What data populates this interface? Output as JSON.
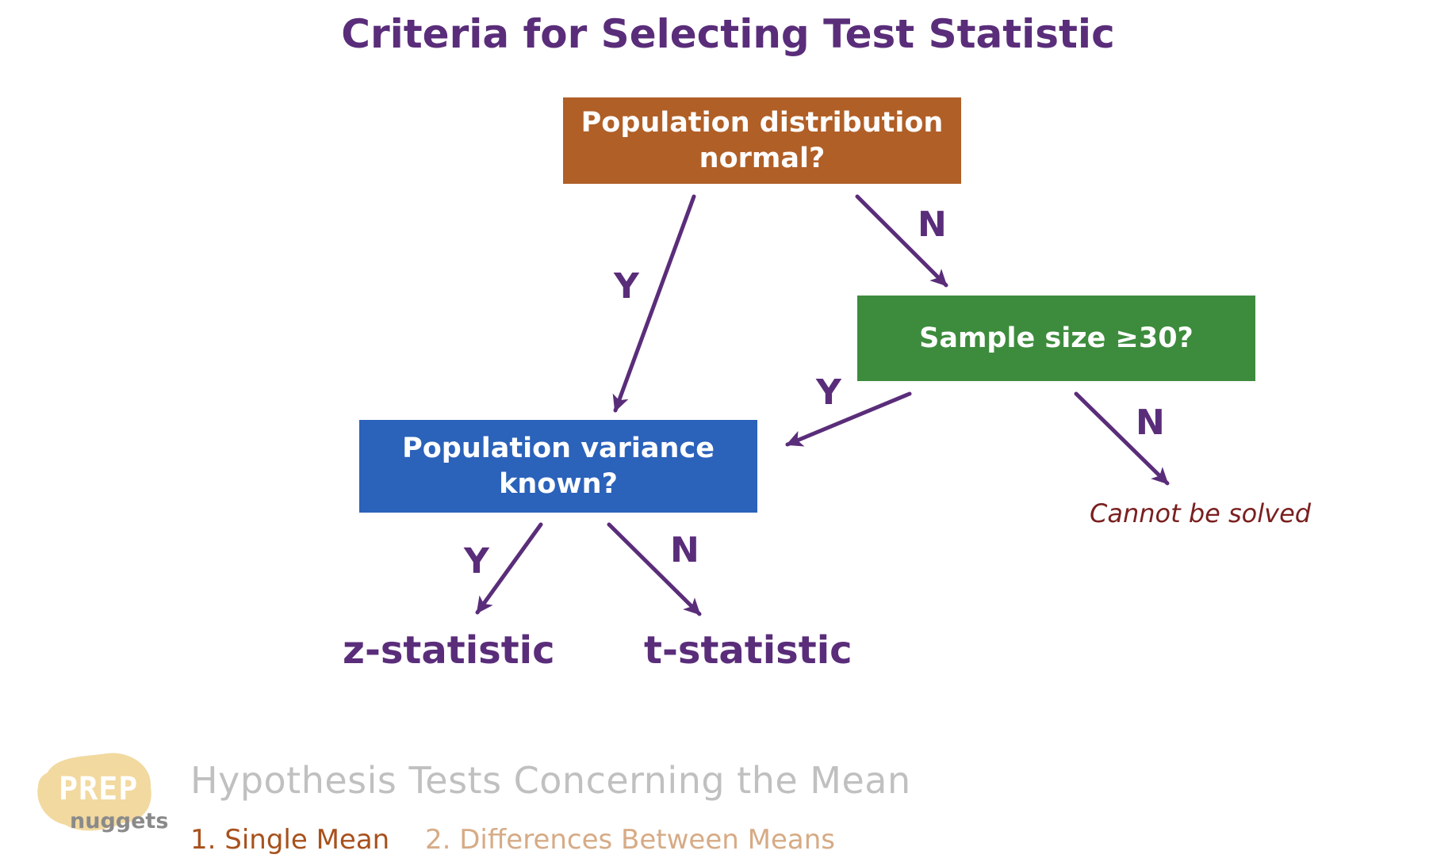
{
  "title": "Criteria for Selecting Test Statistic",
  "nodes": {
    "normal": {
      "line1": "Population distribution",
      "line2": "normal?",
      "color": "#b05f27"
    },
    "sample": {
      "line1": "Sample size ≥30?",
      "color": "#3d8c3d"
    },
    "variance": {
      "line1": "Population variance",
      "line2": "known?",
      "color": "#2b62ba"
    }
  },
  "edges": {
    "normal_yes": "Y",
    "normal_no": "N",
    "sample_yes": "Y",
    "sample_no": "N",
    "variance_yes": "Y",
    "variance_no": "N"
  },
  "outcomes": {
    "z": "z-statistic",
    "t": "t-statistic",
    "unsolvable": "Cannot be solved"
  },
  "footer": {
    "title": "Hypothesis Tests Concerning the Mean",
    "items": [
      "1. Single Mean",
      "2. Differences Between Means"
    ]
  },
  "logo": {
    "word1": "PREP",
    "word2": "nuggets"
  },
  "colors": {
    "accent": "#5a2d7a",
    "arrow": "#5a2d7a"
  }
}
